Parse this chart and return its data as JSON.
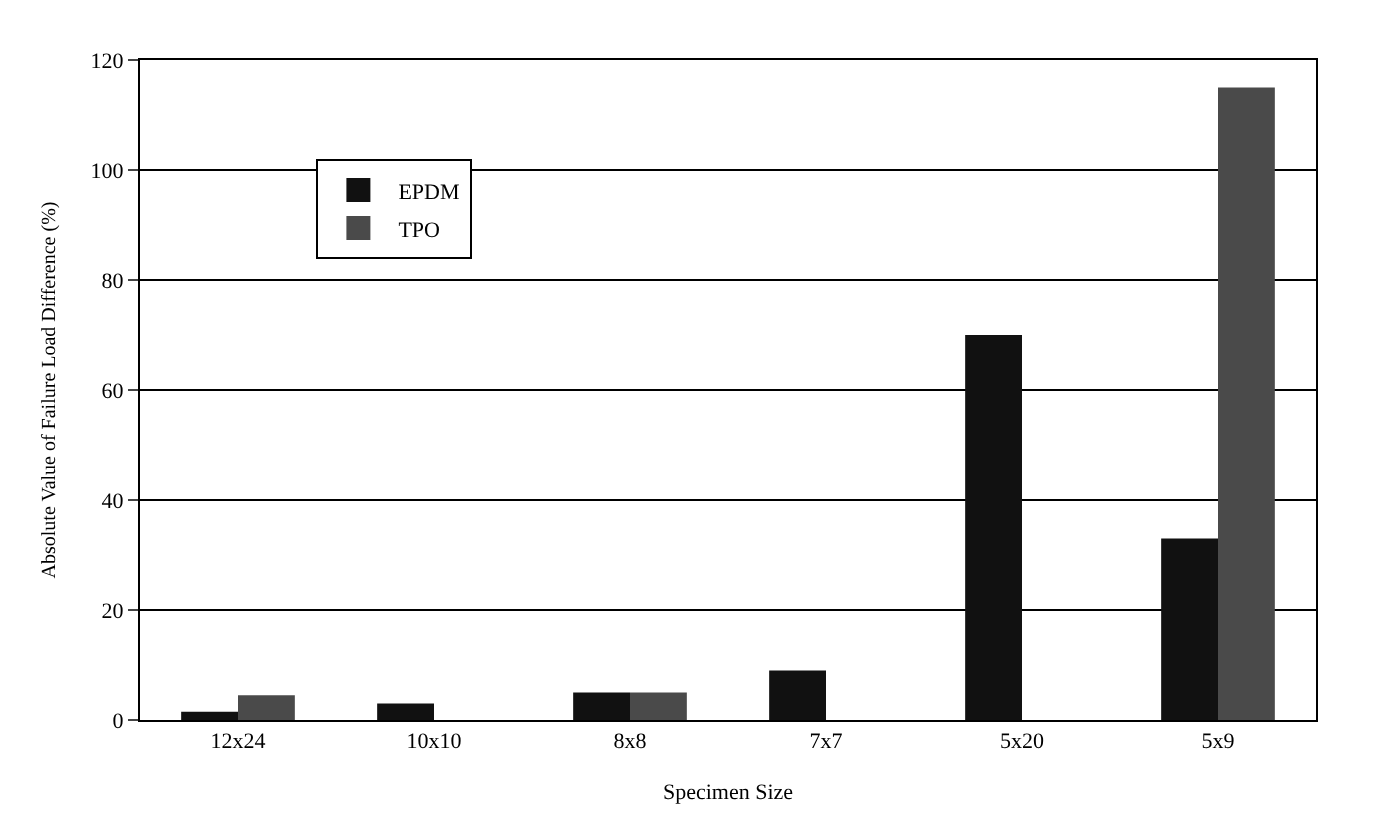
{
  "chart_data": {
    "type": "bar",
    "xlabel": "Specimen Size",
    "ylabel": "Absolute Value of Failure Load Difference (%)",
    "categories": [
      "12x24",
      "10x10",
      "8x8",
      "7x7",
      "5x20",
      "5x9"
    ],
    "series": [
      {
        "name": "EPDM",
        "color": "#111111",
        "values": [
          1.5,
          3,
          5,
          9,
          70,
          33
        ]
      },
      {
        "name": "TPO",
        "color": "#4a4a4a",
        "values": [
          4.5,
          null,
          5,
          null,
          null,
          115
        ]
      }
    ],
    "ylim": [
      0,
      120
    ],
    "yticks": [
      0,
      20,
      40,
      60,
      80,
      100,
      120
    ],
    "grid": "y",
    "legend": "top left"
  }
}
